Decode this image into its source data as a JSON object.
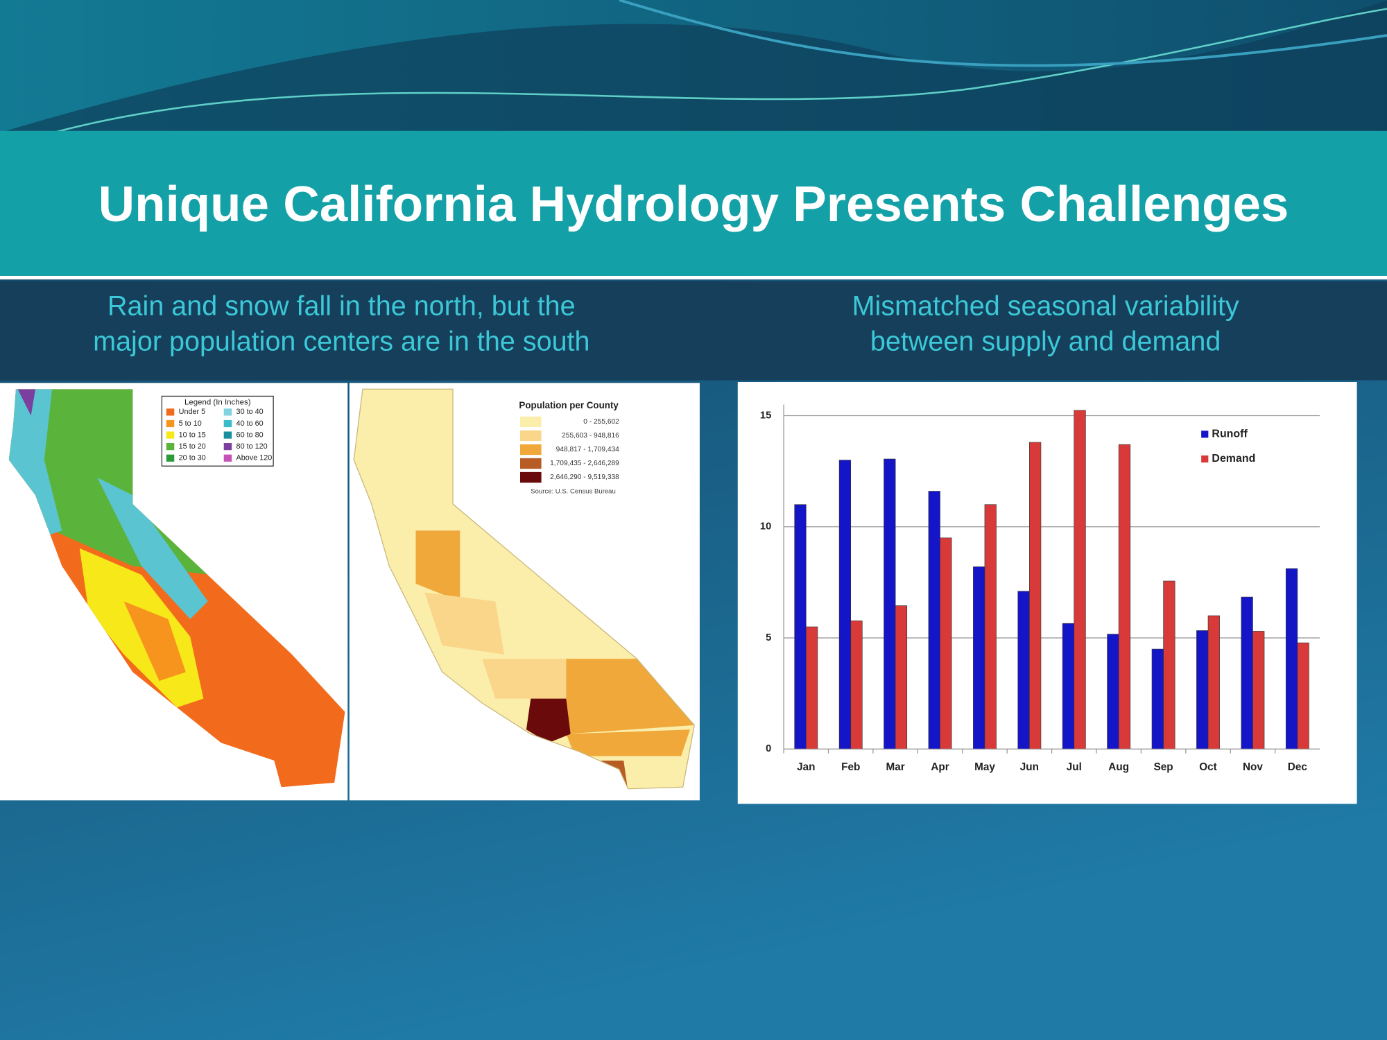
{
  "title": "Unique California Hydrology Presents Challenges",
  "left_caption": [
    "Rain and snow fall in the north, but the",
    "major population centers are in the south"
  ],
  "right_caption": [
    "Mismatched seasonal variability",
    "between supply and demand"
  ],
  "rain_map": {
    "legend_title": "Legend (In Inches)",
    "items": [
      {
        "label": "Under 5",
        "color": "#f26b1d"
      },
      {
        "label": "5 to 10",
        "color": "#f7941d"
      },
      {
        "label": "10 to 15",
        "color": "#f7e81a"
      },
      {
        "label": "15 to 20",
        "color": "#5ab43c"
      },
      {
        "label": "20 to 30",
        "color": "#2e9a3a"
      },
      {
        "label": "30 to 40",
        "color": "#7fd3e0"
      },
      {
        "label": "40 to 60",
        "color": "#3bbcc9"
      },
      {
        "label": "60 to 80",
        "color": "#1a8f9e"
      },
      {
        "label": "80 to 120",
        "color": "#7b3fa0"
      },
      {
        "label": "Above 120",
        "color": "#c452b8"
      }
    ]
  },
  "population_map": {
    "legend_title": "Population per County",
    "items": [
      {
        "label": "0 - 255,602",
        "color": "#fbeeab"
      },
      {
        "label": "255,603 - 948,816",
        "color": "#fad68a"
      },
      {
        "label": "948,817 - 1,709,434",
        "color": "#f0a83a"
      },
      {
        "label": "1,709,435 - 2,646,289",
        "color": "#b85c26"
      },
      {
        "label": "2,646,290 - 9,519,338",
        "color": "#6b0a0a"
      }
    ],
    "source": "Source: U.S. Census Bureau"
  },
  "chart_data": {
    "type": "bar",
    "categories": [
      "Jan",
      "Feb",
      "Mar",
      "Apr",
      "May",
      "Jun",
      "Jul",
      "Aug",
      "Sep",
      "Oct",
      "Nov",
      "Dec"
    ],
    "series": [
      {
        "name": "Runoff",
        "color": "#1515c8",
        "values": [
          11.0,
          13.0,
          13.05,
          11.6,
          8.2,
          7.1,
          5.65,
          5.17,
          4.5,
          5.33,
          6.84,
          8.12
        ]
      },
      {
        "name": "Demand",
        "color": "#d83a3a",
        "values": [
          5.5,
          5.77,
          6.45,
          9.5,
          11.0,
          13.8,
          15.24,
          13.7,
          7.56,
          6.0,
          5.3,
          4.78
        ]
      }
    ],
    "ylim": [
      0,
      15.5
    ],
    "yticks": [
      0,
      5,
      10,
      15
    ],
    "grid": true,
    "legend": "top-right"
  }
}
